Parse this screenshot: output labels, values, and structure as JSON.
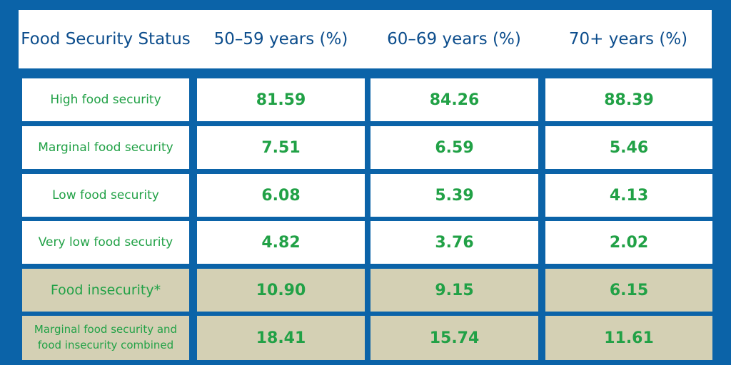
{
  "table": {
    "headers": [
      "Food Security Status",
      "50–59 years (%)",
      "60–69 years (%)",
      "70+ years (%)"
    ],
    "rows": [
      {
        "status": "High food security",
        "values": [
          "81.59",
          "84.26",
          "88.39"
        ]
      },
      {
        "status": "Marginal food security",
        "values": [
          "7.51",
          "6.59",
          "5.46"
        ]
      },
      {
        "status": "Low food security",
        "values": [
          "6.08",
          "5.39",
          "4.13"
        ]
      },
      {
        "status": "Very low food security",
        "values": [
          "4.82",
          "3.76",
          "2.02"
        ]
      },
      {
        "status": "Food insecurity*",
        "values": [
          "10.90",
          "9.15",
          "6.15"
        ]
      },
      {
        "status": "Marginal food security and food insecurity combined",
        "values": [
          "18.41",
          "15.74",
          "11.61"
        ]
      }
    ]
  },
  "colors": {
    "background": "#0b63a8",
    "header_text": "#0c4d8c",
    "value_text": "#21a146",
    "cell": "#ffffff",
    "shaded_cell": "#d4d0b4"
  }
}
